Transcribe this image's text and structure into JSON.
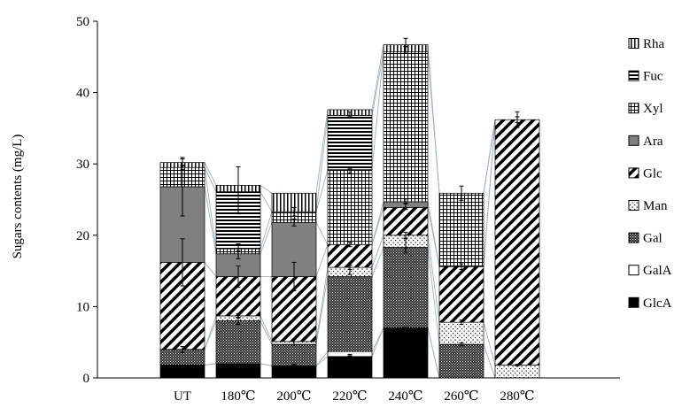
{
  "chart_data": {
    "type": "bar",
    "stacked": true,
    "title": "",
    "xlabel": "",
    "ylabel": "Sugars contents (mg/L)",
    "ylim": [
      0,
      50
    ],
    "yticks": [
      0,
      10,
      20,
      30,
      40,
      50
    ],
    "categories": [
      "UT",
      "180℃",
      "200℃",
      "220℃",
      "240℃",
      "260℃",
      "280℃"
    ],
    "series": [
      {
        "name": "GlcA",
        "pattern": "solid-black",
        "values": [
          1.8,
          2.0,
          1.7,
          3.0,
          7.0,
          0,
          0
        ]
      },
      {
        "name": "GalA",
        "pattern": "white",
        "values": [
          0,
          0,
          0,
          0.7,
          0,
          0,
          0
        ]
      },
      {
        "name": "Gal",
        "pattern": "dense-dots",
        "values": [
          2.2,
          6.0,
          3.0,
          10.5,
          11.3,
          4.7,
          0
        ]
      },
      {
        "name": "Man",
        "pattern": "sparse-dots",
        "values": [
          0,
          0.7,
          0.4,
          1.3,
          1.7,
          3.1,
          1.8
        ]
      },
      {
        "name": "Glc",
        "pattern": "diagonal",
        "values": [
          12.2,
          5.5,
          9.1,
          3.2,
          3.9,
          7.8,
          34.4
        ]
      },
      {
        "name": "Ara",
        "pattern": "solid-gray",
        "values": [
          10.6,
          3.2,
          7.6,
          0,
          0.8,
          0,
          0
        ]
      },
      {
        "name": "Xyl",
        "pattern": "grid",
        "values": [
          2.7,
          0.7,
          1.5,
          10.5,
          21.0,
          10.3,
          0
        ]
      },
      {
        "name": "Fuc",
        "pattern": "horizontal",
        "values": [
          0,
          8.0,
          0,
          7.6,
          0,
          0,
          0
        ]
      },
      {
        "name": "Rha",
        "pattern": "vertical",
        "values": [
          0.7,
          0.9,
          2.6,
          0.8,
          1.0,
          0,
          0
        ]
      }
    ],
    "error_bars": [
      {
        "values": [
          1.7,
          1.9,
          1.8,
          3.2,
          7.0,
          0,
          0
        ],
        "error": [
          0.1,
          0.1,
          0.1,
          0.1,
          0.1,
          0,
          0
        ]
      },
      {
        "values": [
          4.0,
          8.0,
          5.0,
          15.0,
          18.5,
          4.7,
          0
        ],
        "error": [
          0.4,
          0.5,
          0.4,
          0.5,
          1.0,
          0.2,
          0
        ]
      },
      {
        "values": [
          0,
          8.7,
          0,
          15.5,
          20.0,
          7.8,
          1.8
        ],
        "error": [
          0,
          0.3,
          0,
          0.3,
          0.4,
          0.3,
          0.1
        ]
      },
      {
        "values": [
          16.2,
          14.2,
          14.2,
          18.7,
          24.0,
          15.6,
          36.2
        ],
        "error": [
          3.3,
          1.5,
          2.0,
          0.3,
          0.4,
          0.4,
          0.4
        ]
      },
      {
        "values": [
          26.8,
          17.4,
          21.8,
          0,
          24.8,
          0,
          0
        ],
        "error": [
          4.1,
          0.7,
          0.5,
          0,
          0.3,
          0,
          0
        ]
      },
      {
        "values": [
          29.5,
          18.3,
          23.3,
          29.0,
          46.0,
          25.9,
          36.2
        ],
        "error": [
          0.3,
          0.5,
          0.6,
          0.3,
          0.5,
          1.0,
          1.1
        ]
      },
      {
        "values": [
          0,
          26.3,
          0,
          37.0,
          0,
          0,
          0
        ],
        "error": [
          0,
          3.3,
          0,
          0.3,
          0,
          0,
          0
        ]
      },
      {
        "values": [
          30.2,
          27.2,
          25.9,
          37.8,
          47.0,
          0,
          0
        ],
        "error": [
          0.5,
          0,
          0,
          0,
          0.6,
          0,
          0
        ]
      }
    ],
    "legend_placement": "right",
    "legend_order": [
      "Rha",
      "Fuc",
      "Xyl",
      "Ara",
      "Glc",
      "Man",
      "Gal",
      "GalA",
      "GlcA"
    ],
    "grid": false,
    "connector_lines": true
  }
}
